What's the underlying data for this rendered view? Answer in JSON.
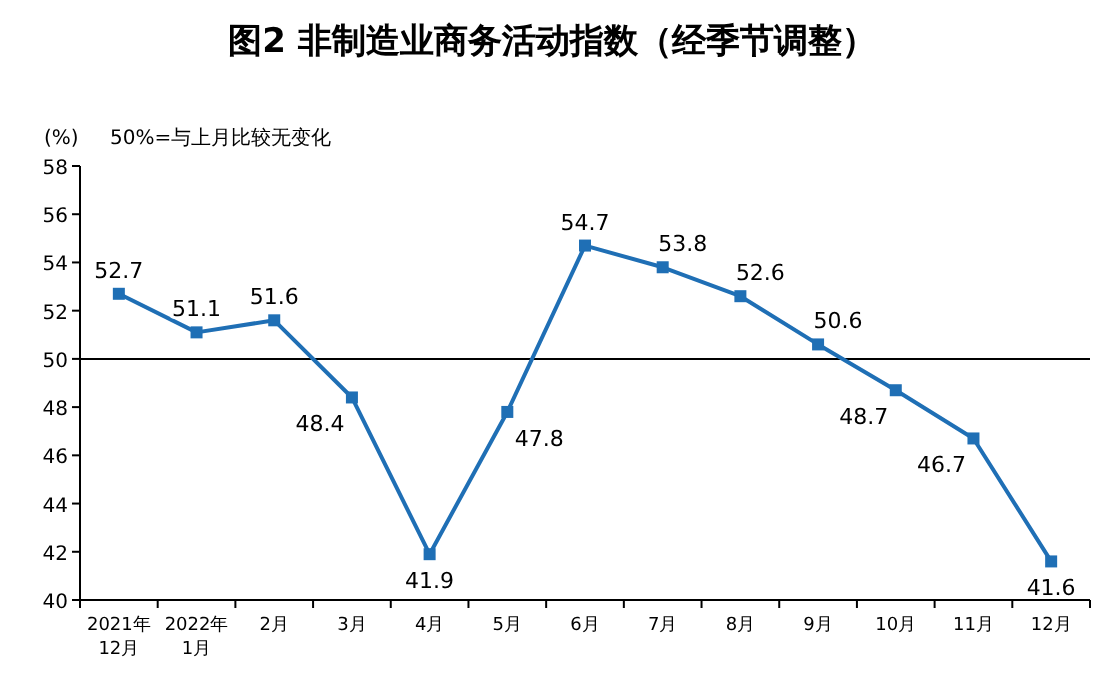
{
  "chart_data": {
    "type": "line",
    "title": "图2 非制造业商务活动指数（经季节调整）",
    "ylabel": "(%)",
    "annotations": [
      "50%=与上月比较无变化"
    ],
    "categories": [
      "2021年\n12月",
      "2022年\n1月",
      "2月",
      "3月",
      "4月",
      "5月",
      "6月",
      "7月",
      "8月",
      "9月",
      "10月",
      "11月",
      "12月"
    ],
    "series": [
      {
        "color": "#1f6fb5",
        "values": [
          52.7,
          51.1,
          51.6,
          48.4,
          41.9,
          47.8,
          54.7,
          53.8,
          52.6,
          50.6,
          48.7,
          46.7,
          41.6
        ]
      }
    ],
    "ylim": [
      40,
      58
    ],
    "yticks": [
      40,
      42,
      44,
      46,
      48,
      50,
      52,
      54,
      56,
      58
    ],
    "ref_lines": [
      {
        "axis": "y",
        "value": 50,
        "color": "#000000"
      }
    ],
    "marker": "square",
    "data_labels": true,
    "grid": false
  }
}
